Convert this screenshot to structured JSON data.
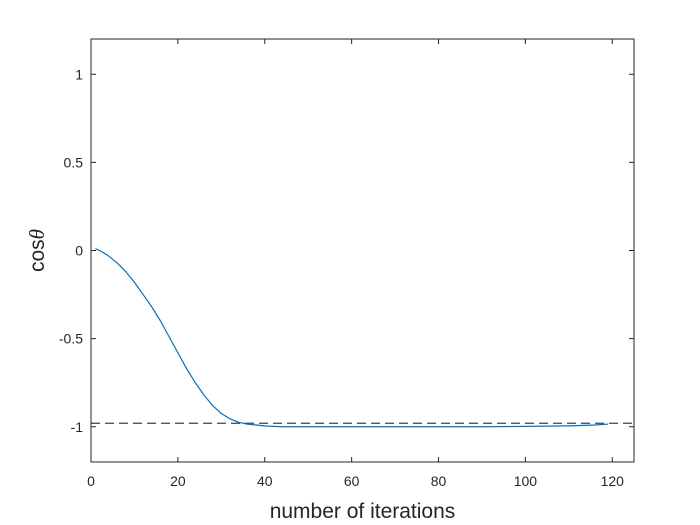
{
  "chart_data": {
    "type": "line",
    "xlabel": "number of iterations",
    "ylabel": {
      "prefix": "cos",
      "symbol": "θ"
    },
    "xlim": [
      0,
      125
    ],
    "ylim": [
      -1.2,
      1.2
    ],
    "xticks": [
      0,
      20,
      40,
      60,
      80,
      100,
      120
    ],
    "yticks": [
      -1,
      -0.5,
      0,
      0.5,
      1
    ],
    "xtick_labels": [
      "0",
      "20",
      "40",
      "60",
      "80",
      "100",
      "120"
    ],
    "ytick_labels": [
      "-1",
      "-0.5",
      "0",
      "0.5",
      "1"
    ],
    "grid": false,
    "series": [
      {
        "color": "#0072BD",
        "style": "solid",
        "x": [
          1,
          2,
          4,
          6,
          8,
          10,
          12,
          14,
          16,
          18,
          20,
          22,
          24,
          26,
          28,
          30,
          32,
          34,
          36,
          38,
          40,
          42,
          44,
          46,
          50,
          60,
          70,
          80,
          90,
          100,
          110,
          116,
          119
        ],
        "y": [
          0.01,
          0.0,
          -0.03,
          -0.07,
          -0.12,
          -0.18,
          -0.25,
          -0.32,
          -0.4,
          -0.49,
          -0.58,
          -0.67,
          -0.75,
          -0.82,
          -0.88,
          -0.925,
          -0.955,
          -0.975,
          -0.985,
          -0.99,
          -0.995,
          -0.998,
          -1.0,
          -1.0,
          -1.0,
          -1.0,
          -1.0,
          -1.0,
          -1.0,
          -0.998,
          -0.995,
          -0.99,
          -0.985
        ]
      }
    ],
    "reference_line": {
      "y": -0.98,
      "color": "#404040",
      "style": "dashed",
      "x_range": [
        0,
        125
      ]
    }
  }
}
